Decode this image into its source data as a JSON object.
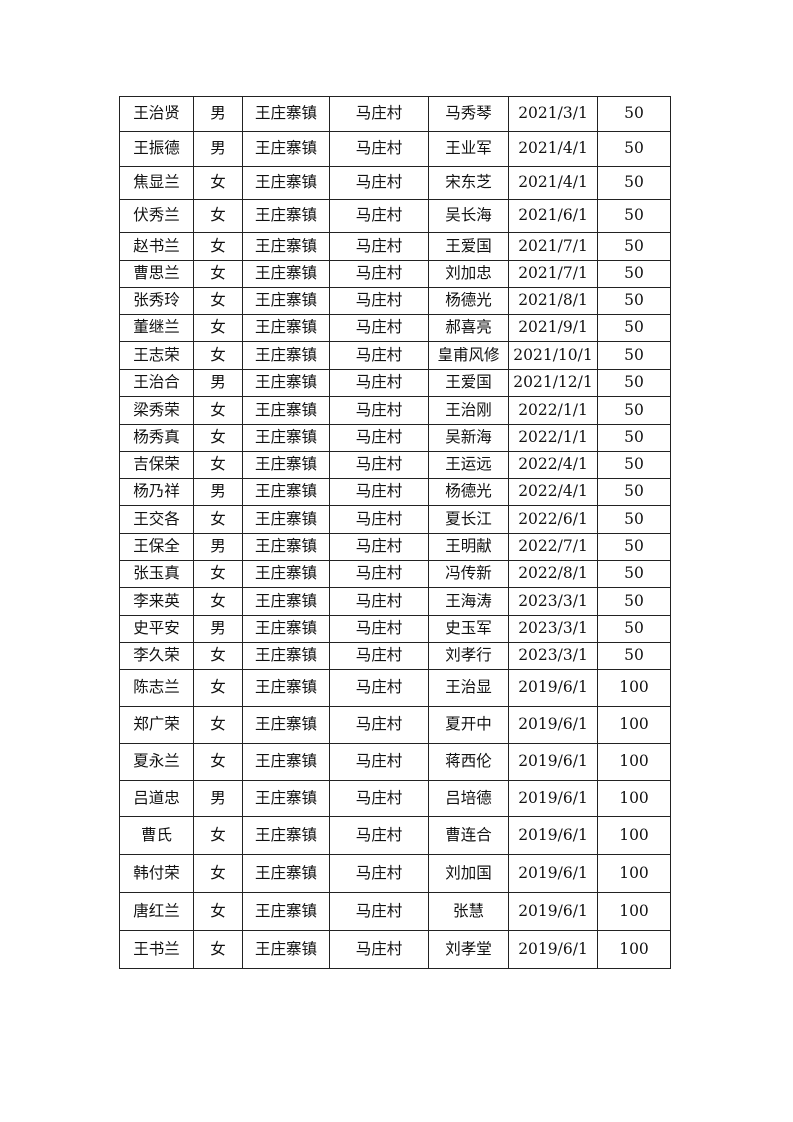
{
  "table": {
    "rows": [
      [
        "王治贤",
        "男",
        "王庄寨镇",
        "马庄村",
        "马秀琴",
        "2021/3/1",
        "50"
      ],
      [
        "王振德",
        "男",
        "王庄寨镇",
        "马庄村",
        "王业军",
        "2021/4/1",
        "50"
      ],
      [
        "焦显兰",
        "女",
        "王庄寨镇",
        "马庄村",
        "宋东芝",
        "2021/4/1",
        "50"
      ],
      [
        "伏秀兰",
        "女",
        "王庄寨镇",
        "马庄村",
        "吴长海",
        "2021/6/1",
        "50"
      ],
      [
        "赵书兰",
        "女",
        "王庄寨镇",
        "马庄村",
        "王爱国",
        "2021/7/1",
        "50"
      ],
      [
        "曹思兰",
        "女",
        "王庄寨镇",
        "马庄村",
        "刘加忠",
        "2021/7/1",
        "50"
      ],
      [
        "张秀玲",
        "女",
        "王庄寨镇",
        "马庄村",
        "杨德光",
        "2021/8/1",
        "50"
      ],
      [
        "董继兰",
        "女",
        "王庄寨镇",
        "马庄村",
        "郝喜亮",
        "2021/9/1",
        "50"
      ],
      [
        "王志荣",
        "女",
        "王庄寨镇",
        "马庄村",
        "皇甫风修",
        "2021/10/1",
        "50"
      ],
      [
        "王治合",
        "男",
        "王庄寨镇",
        "马庄村",
        "王爱国",
        "2021/12/1",
        "50"
      ],
      [
        "梁秀荣",
        "女",
        "王庄寨镇",
        "马庄村",
        "王治刚",
        "2022/1/1",
        "50"
      ],
      [
        "杨秀真",
        "女",
        "王庄寨镇",
        "马庄村",
        "吴新海",
        "2022/1/1",
        "50"
      ],
      [
        "吉保荣",
        "女",
        "王庄寨镇",
        "马庄村",
        "王运远",
        "2022/4/1",
        "50"
      ],
      [
        "杨乃祥",
        "男",
        "王庄寨镇",
        "马庄村",
        "杨德光",
        "2022/4/1",
        "50"
      ],
      [
        "王交各",
        "女",
        "王庄寨镇",
        "马庄村",
        "夏长江",
        "2022/6/1",
        "50"
      ],
      [
        "王保全",
        "男",
        "王庄寨镇",
        "马庄村",
        "王明献",
        "2022/7/1",
        "50"
      ],
      [
        "张玉真",
        "女",
        "王庄寨镇",
        "马庄村",
        "冯传新",
        "2022/8/1",
        "50"
      ],
      [
        "李来英",
        "女",
        "王庄寨镇",
        "马庄村",
        "王海涛",
        "2023/3/1",
        "50"
      ],
      [
        "史平安",
        "男",
        "王庄寨镇",
        "马庄村",
        "史玉军",
        "2023/3/1",
        "50"
      ],
      [
        "李久荣",
        "女",
        "王庄寨镇",
        "马庄村",
        "刘孝行",
        "2023/3/1",
        "50"
      ],
      [
        "陈志兰",
        "女",
        "王庄寨镇",
        "马庄村",
        "王治显",
        "2019/6/1",
        "100"
      ],
      [
        "郑广荣",
        "女",
        "王庄寨镇",
        "马庄村",
        "夏开中",
        "2019/6/1",
        "100"
      ],
      [
        "夏永兰",
        "女",
        "王庄寨镇",
        "马庄村",
        "蒋西伦",
        "2019/6/1",
        "100"
      ],
      [
        "吕道忠",
        "男",
        "王庄寨镇",
        "马庄村",
        "吕培德",
        "2019/6/1",
        "100"
      ],
      [
        "曹氏",
        "女",
        "王庄寨镇",
        "马庄村",
        "曹连合",
        "2019/6/1",
        "100"
      ],
      [
        "韩付荣",
        "女",
        "王庄寨镇",
        "马庄村",
        "刘加国",
        "2019/6/1",
        "100"
      ],
      [
        "唐红兰",
        "女",
        "王庄寨镇",
        "马庄村",
        "张慧",
        "2019/6/1",
        "100"
      ],
      [
        "王书兰",
        "女",
        "王庄寨镇",
        "马庄村",
        "刘孝堂",
        "2019/6/1",
        "100"
      ]
    ]
  }
}
